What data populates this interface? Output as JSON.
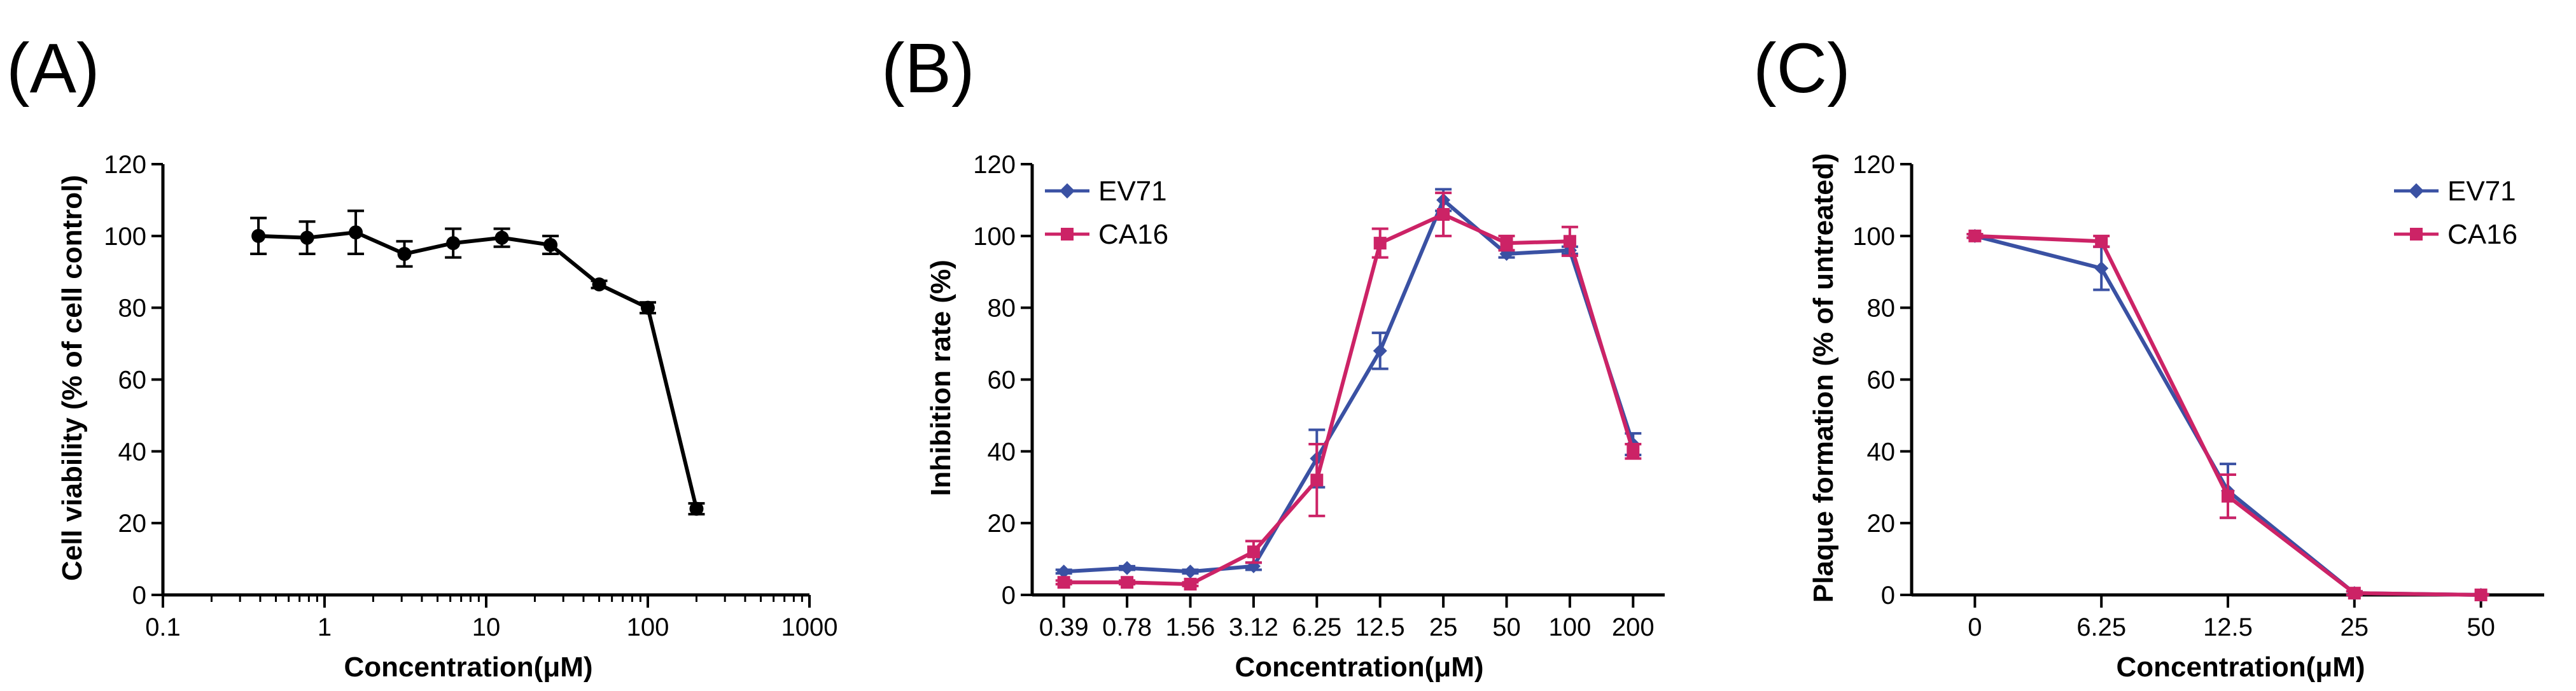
{
  "chart_data": [
    {
      "panel": "(A)",
      "type": "line",
      "xscale": "log",
      "xlabel": "Concentration(μM)",
      "ylabel": "Cell viability (% of cell control)",
      "xlim": [
        0.1,
        1000
      ],
      "ylim": [
        0,
        120
      ],
      "xticks": [
        "0.1",
        "1",
        "10",
        "100",
        "1000"
      ],
      "yticks": [
        "0",
        "20",
        "40",
        "60",
        "80",
        "100",
        "120"
      ],
      "legend": null,
      "series": [
        {
          "name": "",
          "color": "#000000",
          "marker": "circle",
          "x": [
            0.39,
            0.78,
            1.56,
            3.12,
            6.25,
            12.5,
            25,
            50,
            100,
            200
          ],
          "y": [
            100,
            99.5,
            101,
            95,
            98,
            99.5,
            97.5,
            86.5,
            80,
            24
          ],
          "err": [
            5,
            4.5,
            6,
            3.5,
            4,
            2.5,
            2.5,
            1,
            1.5,
            1.5
          ]
        }
      ]
    },
    {
      "panel": "(B)",
      "type": "line",
      "xscale": "categorical",
      "xlabel": "Concentration(μM)",
      "ylabel": "Inhibition rate  (%)",
      "categories": [
        "0.39",
        "0.78",
        "1.56",
        "3.12",
        "6.25",
        "12.5",
        "25",
        "50",
        "100",
        "200"
      ],
      "ylim": [
        0,
        120
      ],
      "yticks": [
        "0",
        "20",
        "40",
        "60",
        "80",
        "100",
        "120"
      ],
      "legend": "top-left",
      "series": [
        {
          "name": "EV71",
          "color": "#3a51a3",
          "marker": "diamond",
          "values": [
            6.5,
            7.5,
            6.5,
            8,
            38,
            68,
            110,
            95,
            96,
            42
          ],
          "err": [
            0.5,
            0.5,
            0.5,
            1,
            8,
            5,
            3,
            1,
            1,
            3
          ]
        },
        {
          "name": "CA16",
          "color": "#cc2366",
          "marker": "square",
          "values": [
            3.5,
            3.5,
            3,
            12,
            32,
            98,
            106,
            98,
            98.5,
            40
          ],
          "err": [
            0.5,
            0.5,
            0.5,
            3,
            10,
            4,
            6,
            2,
            4,
            2
          ]
        }
      ]
    },
    {
      "panel": "(C)",
      "type": "line",
      "xscale": "categorical",
      "xlabel": "Concentration(μM)",
      "ylabel": "Plaque formation (% of untreated)",
      "categories": [
        "0",
        "6.25",
        "12.5",
        "25",
        "50"
      ],
      "ylim": [
        0,
        120
      ],
      "yticks": [
        "0",
        "20",
        "40",
        "60",
        "80",
        "100",
        "120"
      ],
      "legend": "top-right",
      "series": [
        {
          "name": "EV71",
          "color": "#3a51a3",
          "marker": "diamond",
          "values": [
            100,
            91,
            29,
            0.5,
            0
          ],
          "err": [
            0.5,
            6,
            7.5,
            0.5,
            0.2
          ]
        },
        {
          "name": "CA16",
          "color": "#cc2366",
          "marker": "square",
          "values": [
            100,
            98.5,
            27.5,
            0.5,
            0
          ],
          "err": [
            0.5,
            1.5,
            6,
            0.5,
            0.2
          ]
        }
      ]
    }
  ]
}
